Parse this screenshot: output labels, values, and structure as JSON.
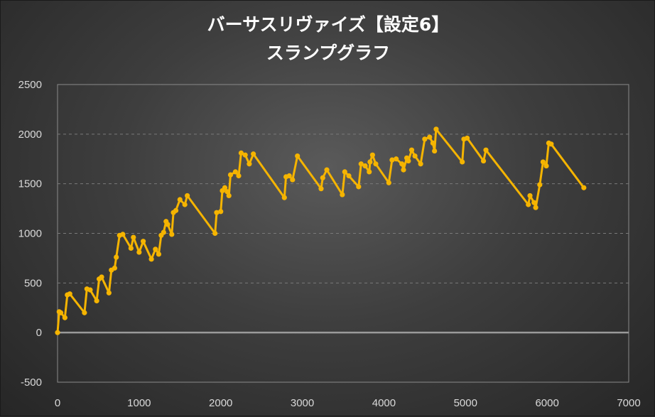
{
  "chart_data": {
    "type": "line",
    "title_line1": "バーサスリヴァイズ【設定6】",
    "title_line2": "スランプグラフ",
    "xlim": [
      0,
      7000
    ],
    "ylim": [
      -500,
      2500
    ],
    "x_ticks": [
      0,
      1000,
      2000,
      3000,
      4000,
      5000,
      6000,
      7000
    ],
    "y_ticks": [
      -500,
      0,
      500,
      1000,
      1500,
      2000,
      2500
    ],
    "grid": true,
    "line_color": "#f5b400",
    "zero_line_color": "#9a9a9a",
    "series": [
      {
        "x": [
          0,
          20,
          40,
          90,
          120,
          150,
          330,
          360,
          400,
          480,
          510,
          540,
          630,
          660,
          700,
          720,
          760,
          800,
          900,
          930,
          1000,
          1050,
          1150,
          1200,
          1240,
          1270,
          1300,
          1330,
          1350,
          1400,
          1420,
          1450,
          1500,
          1560,
          1590,
          1930,
          1950,
          2000,
          2020,
          2050,
          2080,
          2100,
          2120,
          2180,
          2220,
          2250,
          2300,
          2350,
          2400,
          2780,
          2800,
          2840,
          2880,
          2940,
          3230,
          3250,
          3300,
          3490,
          3520,
          3570,
          3690,
          3720,
          3770,
          3820,
          3830,
          3860,
          3900,
          4060,
          4100,
          4150,
          4220,
          4240,
          4280,
          4300,
          4340,
          4380,
          4450,
          4500,
          4560,
          4600,
          4620,
          4640,
          4960,
          4980,
          5020,
          5220,
          5250,
          5770,
          5790,
          5840,
          5860,
          5910,
          5950,
          5990,
          6020,
          6050,
          6450
        ],
        "y": [
          0,
          210,
          200,
          150,
          380,
          390,
          200,
          440,
          430,
          320,
          540,
          560,
          400,
          630,
          650,
          760,
          980,
          990,
          850,
          960,
          810,
          920,
          740,
          840,
          790,
          980,
          1010,
          1120,
          1090,
          990,
          1210,
          1230,
          1340,
          1290,
          1380,
          1000,
          1210,
          1220,
          1430,
          1460,
          1420,
          1380,
          1590,
          1620,
          1580,
          1810,
          1790,
          1700,
          1800,
          1360,
          1570,
          1580,
          1540,
          1780,
          1450,
          1560,
          1640,
          1390,
          1620,
          1580,
          1470,
          1700,
          1680,
          1620,
          1720,
          1790,
          1700,
          1510,
          1740,
          1750,
          1700,
          1640,
          1760,
          1730,
          1840,
          1780,
          1700,
          1950,
          1970,
          1910,
          1830,
          2050,
          1720,
          1950,
          1960,
          1730,
          1840,
          1290,
          1380,
          1310,
          1260,
          1490,
          1720,
          1680,
          1910,
          1900,
          1460
        ]
      }
    ]
  }
}
